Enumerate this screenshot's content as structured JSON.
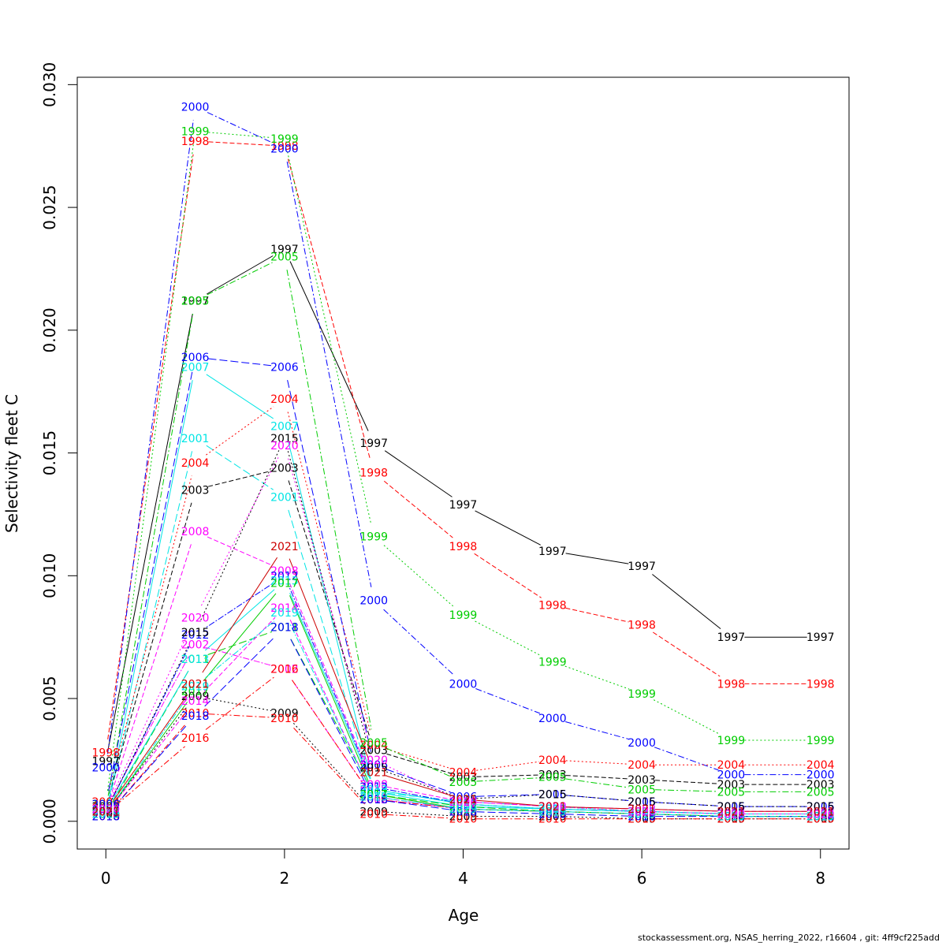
{
  "chart_data": {
    "type": "line",
    "xlabel": "Age",
    "ylabel": "Selectivity fleet C",
    "x": [
      0,
      1,
      2,
      3,
      4,
      5,
      6,
      7,
      8
    ],
    "xlim": [
      -0.32,
      8.32
    ],
    "ylim": [
      -0.00113,
      0.0303
    ],
    "x_ticks": [
      "0",
      "2",
      "4",
      "6",
      "8"
    ],
    "y_ticks": [
      "0.000",
      "0.005",
      "0.010",
      "0.015",
      "0.020",
      "0.025",
      "0.030"
    ],
    "grid": false,
    "legend": "none",
    "series": [
      {
        "name": "1997",
        "color": "#000000",
        "dash": "",
        "values": [
          0.00245,
          0.0212,
          0.0233,
          0.0154,
          0.0129,
          0.011,
          0.0104,
          0.0075,
          0.0075
        ]
      },
      {
        "name": "1998",
        "color": "#ff0000",
        "dash": "6 3",
        "values": [
          0.0028,
          0.0277,
          0.0275,
          0.0142,
          0.0112,
          0.0088,
          0.008,
          0.0056,
          0.0056
        ]
      },
      {
        "name": "1999",
        "color": "#00cd00",
        "dash": "2 3",
        "values": [
          0.0007,
          0.0281,
          0.0278,
          0.0116,
          0.0084,
          0.0065,
          0.0052,
          0.0033,
          0.0033
        ]
      },
      {
        "name": "2000",
        "color": "#0000ff",
        "dash": "8 3 2 3",
        "values": [
          0.0022,
          0.0291,
          0.0274,
          0.009,
          0.0056,
          0.0042,
          0.0032,
          0.0019,
          0.0019
        ]
      },
      {
        "name": "2001",
        "color": "#00e5e5",
        "dash": "10 4",
        "values": [
          0.0003,
          0.0156,
          0.0132,
          0.0012,
          0.0008,
          0.0006,
          0.0004,
          0.0003,
          0.0003
        ]
      },
      {
        "name": "2002",
        "color": "#ff00ff",
        "dash": "2 2 8 2",
        "values": [
          0.0005,
          0.0072,
          0.0062,
          0.0009,
          0.0005,
          0.0004,
          0.0003,
          0.0002,
          0.0002
        ]
      },
      {
        "name": "2003",
        "color": "#000000",
        "dash": "6 3",
        "values": [
          0.0006,
          0.0135,
          0.0144,
          0.0029,
          0.0018,
          0.0019,
          0.0017,
          0.0015,
          0.0015
        ]
      },
      {
        "name": "2004",
        "color": "#ff0000",
        "dash": "2 3",
        "values": [
          0.0008,
          0.0146,
          0.0172,
          0.0031,
          0.002,
          0.0025,
          0.0023,
          0.0023,
          0.0023
        ]
      },
      {
        "name": "2005",
        "color": "#00cd00",
        "dash": "8 3 2 3",
        "values": [
          0.0005,
          0.0212,
          0.023,
          0.0032,
          0.0016,
          0.0018,
          0.0013,
          0.0012,
          0.0012
        ]
      },
      {
        "name": "2006",
        "color": "#0000ff",
        "dash": "10 4",
        "values": [
          0.0007,
          0.0189,
          0.0185,
          0.0023,
          0.001,
          0.0011,
          0.0008,
          0.0006,
          0.0006
        ]
      },
      {
        "name": "2007",
        "color": "#00e5e5",
        "dash": "",
        "values": [
          0.0003,
          0.0185,
          0.0161,
          0.0012,
          0.0006,
          0.0005,
          0.0004,
          0.0003,
          0.0003
        ]
      },
      {
        "name": "2008",
        "color": "#ff00ff",
        "dash": "6 3",
        "values": [
          0.0004,
          0.0118,
          0.0102,
          0.0015,
          0.0008,
          0.0006,
          0.0005,
          0.0004,
          0.0004
        ]
      },
      {
        "name": "2009",
        "color": "#000000",
        "dash": "2 3",
        "values": [
          0.0003,
          0.0051,
          0.0044,
          0.0004,
          0.0002,
          0.0002,
          0.0001,
          0.0001,
          0.0001
        ]
      },
      {
        "name": "2010",
        "color": "#ff0000",
        "dash": "8 3 2 3",
        "values": [
          0.0002,
          0.0044,
          0.0042,
          0.0003,
          0.0001,
          0.0001,
          0.0001,
          0.0001,
          0.0001
        ]
      },
      {
        "name": "2011",
        "color": "#00cd00",
        "dash": "10 4",
        "values": [
          0.0003,
          0.0066,
          0.0079,
          0.0011,
          0.0006,
          0.0004,
          0.0003,
          0.0002,
          0.0002
        ]
      },
      {
        "name": "2012",
        "color": "#0000ff",
        "dash": "2 2 8 2",
        "values": [
          0.0004,
          0.0076,
          0.01,
          0.0014,
          0.0007,
          0.0005,
          0.0004,
          0.0003,
          0.0003
        ]
      },
      {
        "name": "2013",
        "color": "#00e5e5",
        "dash": "",
        "values": [
          0.0004,
          0.0066,
          0.0098,
          0.0013,
          0.0007,
          0.0005,
          0.0004,
          0.0003,
          0.0003
        ]
      },
      {
        "name": "2014",
        "color": "#ff00ff",
        "dash": "6 3",
        "values": [
          0.0003,
          0.0049,
          0.0087,
          0.001,
          0.0005,
          0.0004,
          0.0003,
          0.0002,
          0.0002
        ]
      },
      {
        "name": "2015",
        "color": "#000000",
        "dash": "2 3",
        "values": [
          0.0004,
          0.0077,
          0.0156,
          0.0022,
          0.0009,
          0.0011,
          0.0008,
          0.0006,
          0.0006
        ]
      },
      {
        "name": "2016",
        "color": "#ff0000",
        "dash": "8 3 2 3",
        "values": [
          0.0003,
          0.0034,
          0.0062,
          0.0009,
          0.0005,
          0.0004,
          0.0003,
          0.0002,
          0.0002
        ]
      },
      {
        "name": "2017",
        "color": "#00cd00",
        "dash": "",
        "values": [
          0.0003,
          0.0053,
          0.0097,
          0.0011,
          0.0005,
          0.0004,
          0.0003,
          0.0002,
          0.0002
        ]
      },
      {
        "name": "2018",
        "color": "#0000ff",
        "dash": "10 4",
        "values": [
          0.0002,
          0.0043,
          0.0079,
          0.0009,
          0.0004,
          0.0003,
          0.0002,
          0.0002,
          0.0002
        ]
      },
      {
        "name": "2019",
        "color": "#00e5e5",
        "dash": "2 2 8 2",
        "values": [
          0.0003,
          0.0055,
          0.0085,
          0.001,
          0.0005,
          0.0004,
          0.0003,
          0.0002,
          0.0002
        ]
      },
      {
        "name": "2020",
        "color": "#ff00ff",
        "dash": "2 3",
        "values": [
          0.0005,
          0.0083,
          0.0153,
          0.0025,
          0.0008,
          0.0006,
          0.0004,
          0.0003,
          0.0003
        ]
      },
      {
        "name": "2021",
        "color": "#cc0000",
        "dash": "",
        "values": [
          0.0004,
          0.0056,
          0.0112,
          0.002,
          0.0009,
          0.0006,
          0.0005,
          0.0004,
          0.0004
        ]
      }
    ]
  },
  "footer": {
    "text": "stockassessment.org, NSAS_herring_2022, r16604 , git: 4ff9cf225add"
  }
}
